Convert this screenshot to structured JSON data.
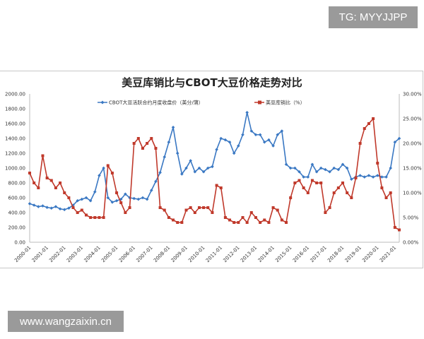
{
  "watermarks": {
    "top": "TG: MYYJJPP",
    "bottom": "www.wangzaixin.cn"
  },
  "chart_data": {
    "type": "line",
    "title": "美豆库销比与CBOT大豆价格走势对比",
    "legend_position": "top-center",
    "x_tick_labels": [
      "2000-01",
      "2001-01",
      "2002-01",
      "2003-01",
      "2004-01",
      "2005-01",
      "2006-01",
      "2007-01",
      "2008-01",
      "2009-01",
      "2010-01",
      "2011-01",
      "2012-01",
      "2013-01",
      "2014-01",
      "2015-01",
      "2016-01",
      "2017-01",
      "2018-01",
      "2019-01",
      "2020-01",
      "2021-01"
    ],
    "x_range": [
      2000.0,
      2021.25
    ],
    "y_left": {
      "range": [
        0,
        2000
      ],
      "ticks": [
        "0.00",
        "200.00",
        "400.00",
        "600.00",
        "800.00",
        "1000.00",
        "1200.00",
        "1400.00",
        "1600.00",
        "1800.00",
        "2000.00"
      ]
    },
    "y_right": {
      "range": [
        0,
        30
      ],
      "ticks": [
        "0.00%",
        "5.00%",
        "10.00%",
        "15.00%",
        "20.00%",
        "25.00%",
        "30.00%"
      ]
    },
    "x_step_years": 0.25,
    "series": [
      {
        "name": "CBOT大豆活跃合约月度收盘价（美分/蒲）",
        "axis": "left",
        "color": "#3a78c3",
        "marker": "diamond",
        "values": [
          520,
          500,
          480,
          490,
          470,
          460,
          480,
          450,
          440,
          460,
          500,
          560,
          580,
          600,
          560,
          680,
          900,
          1000,
          600,
          540,
          560,
          580,
          650,
          600,
          590,
          580,
          600,
          580,
          700,
          820,
          940,
          1150,
          1350,
          1550,
          1200,
          920,
          1000,
          1100,
          950,
          1000,
          950,
          1000,
          1020,
          1250,
          1400,
          1380,
          1350,
          1200,
          1300,
          1450,
          1750,
          1500,
          1450,
          1450,
          1350,
          1380,
          1300,
          1450,
          1500,
          1050,
          1000,
          1000,
          950,
          880,
          880,
          1050,
          950,
          1000,
          980,
          950,
          1000,
          980,
          1050,
          1000,
          850,
          880,
          900,
          880,
          900,
          880,
          900,
          880,
          880,
          1000,
          1350,
          1400
        ]
      },
      {
        "name": "美豆库销比（%）",
        "axis": "right",
        "color": "#c0392b",
        "marker": "square",
        "values": [
          14,
          12,
          11,
          17.5,
          13,
          12.5,
          11,
          12,
          10,
          9,
          7,
          6,
          6.5,
          5.5,
          5,
          5,
          5,
          5,
          15.5,
          14,
          10,
          8,
          6,
          7,
          20,
          21,
          19,
          20,
          21,
          19,
          7,
          6.5,
          5,
          4.5,
          4,
          4,
          6.5,
          7,
          6,
          7,
          7,
          7,
          6,
          11.5,
          11,
          5,
          4.5,
          4,
          4,
          5,
          4,
          6,
          5,
          4,
          4.5,
          4,
          7,
          6.5,
          4.5,
          4,
          9,
          12,
          12.5,
          11,
          10,
          12.5,
          12,
          12,
          6,
          7,
          10,
          11,
          12,
          10,
          9,
          13,
          20,
          23,
          24,
          25,
          16,
          11,
          9,
          10,
          3,
          2.5
        ]
      }
    ]
  }
}
